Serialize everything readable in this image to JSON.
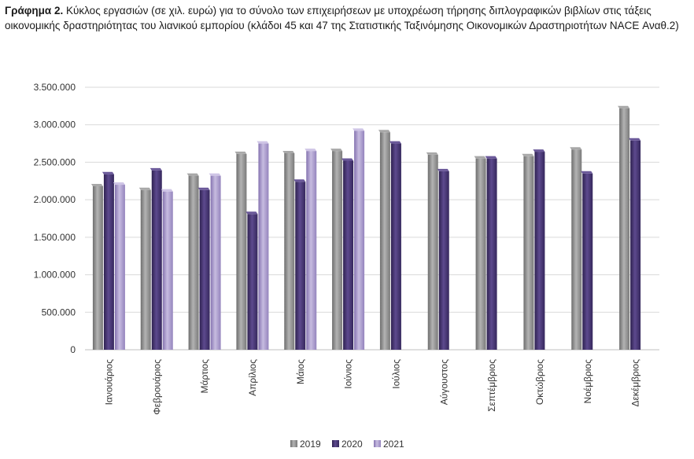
{
  "caption": {
    "label": "Γράφημα 2.",
    "text": " Κύκλος εργασιών (σε χιλ. ευρώ) για το σύνολο των επιχειρήσεων με υποχρέωση τήρησης διπλογραφικών βιβλίων στις τάξεις οικονομικής δραστηριότητας του λιανικού εμπορίου (κλάδοι 45 και 47 της Στατιστικής Ταξινόμησης Οικονομικών Δραστηριοτήτων NACE Αναθ.2)"
  },
  "chart_data": {
    "type": "bar",
    "title": "",
    "xlabel": "",
    "ylabel": "",
    "ylim": [
      0,
      3500000
    ],
    "yticks": [
      0,
      500000,
      1000000,
      1500000,
      2000000,
      2500000,
      3000000,
      3500000
    ],
    "ytick_labels": [
      "0",
      "500.000",
      "1.000.000",
      "1.500.000",
      "2.000.000",
      "2.500.000",
      "3.000.000",
      "3.500.000"
    ],
    "grid": true,
    "legend_position": "bottom",
    "categories": [
      "Ιανουάριος",
      "Φεβρουάριος",
      "Μάρτιος",
      "Απρίλιος",
      "Μάιος",
      "Ιούνιος",
      "Ιούλιος",
      "Αύγουστος",
      "Σεπτέμβριος",
      "Οκτώβριος",
      "Νοέμβριος",
      "Δεκέμβριος"
    ],
    "series": [
      {
        "name": "2019",
        "color": "#8c8c8c",
        "values": [
          2180000,
          2130000,
          2320000,
          2610000,
          2620000,
          2650000,
          2900000,
          2600000,
          2550000,
          2580000,
          2670000,
          3220000
        ]
      },
      {
        "name": "2020",
        "color": "#4b3a78",
        "values": [
          2340000,
          2390000,
          2130000,
          1810000,
          2240000,
          2520000,
          2750000,
          2380000,
          2550000,
          2640000,
          2350000,
          2790000
        ]
      },
      {
        "name": "2021",
        "color": "#a594c9",
        "values": [
          2200000,
          2110000,
          2320000,
          2750000,
          2650000,
          2920000,
          null,
          null,
          null,
          null,
          null,
          null
        ]
      }
    ]
  }
}
